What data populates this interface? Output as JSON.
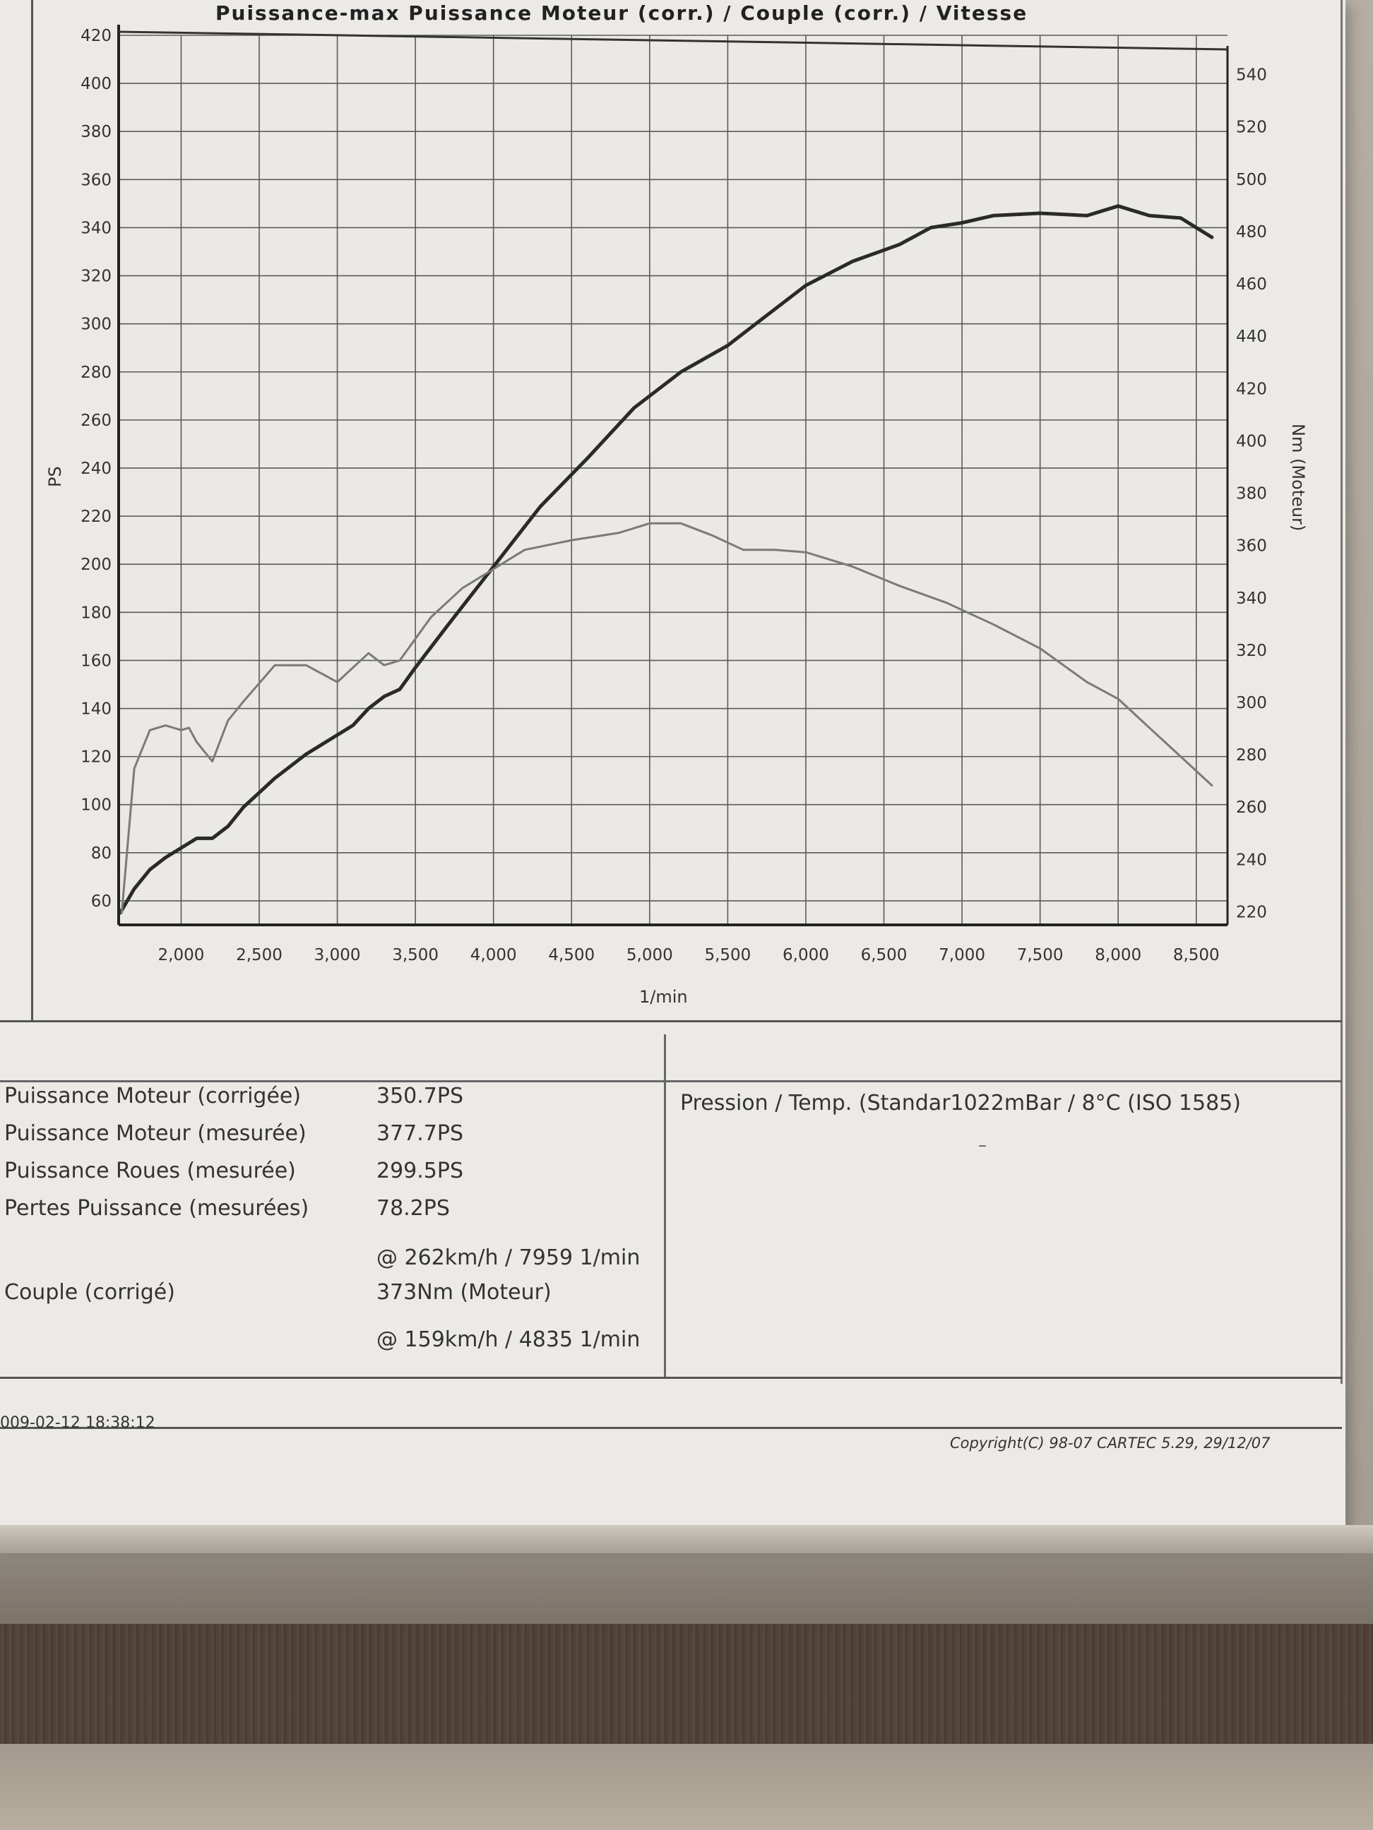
{
  "chart_data": {
    "type": "line",
    "title": "Puissance-max Puissance Moteur (corr.) / Couple (corr.) / Vitesse",
    "xlabel": "1/min",
    "ylabel_left": "PS",
    "ylabel_right": "Nm (Moteur)",
    "xlim": [
      1600,
      8700
    ],
    "ylim_left": [
      50,
      420
    ],
    "ylim_right": [
      215,
      555
    ],
    "x_ticks": [
      2000,
      2500,
      3000,
      3500,
      4000,
      4500,
      5000,
      5500,
      6000,
      6500,
      7000,
      7500,
      8000,
      8500
    ],
    "x_tick_labels": [
      "2,000",
      "2,500",
      "3,000",
      "3,500",
      "4,000",
      "4,500",
      "5,000",
      "5,500",
      "6,000",
      "6,500",
      "7,000",
      "7,500",
      "8,000",
      "8,500"
    ],
    "y_left_ticks": [
      60,
      80,
      100,
      120,
      140,
      160,
      180,
      200,
      220,
      240,
      260,
      280,
      300,
      320,
      340,
      360,
      380,
      400,
      420
    ],
    "y_right_ticks": [
      220,
      240,
      260,
      280,
      300,
      320,
      340,
      360,
      380,
      400,
      420,
      440,
      460,
      480,
      500,
      520,
      540
    ],
    "grid": true,
    "series": [
      {
        "axis": "left",
        "color": "#2a2a2a",
        "x": [
          1610,
          1700,
          1800,
          1900,
          2000,
          2100,
          2200,
          2300,
          2400,
          2600,
          2800,
          3000,
          3100,
          3200,
          3300,
          3400,
          3500,
          3700,
          4000,
          4300,
          4600,
          4900,
          5200,
          5500,
          5700,
          6000,
          6300,
          6600,
          6800,
          7000,
          7200,
          7500,
          7800,
          8000,
          8200,
          8400,
          8600
        ],
        "y": [
          55,
          65,
          73,
          78,
          82,
          86,
          86,
          91,
          99,
          111,
          121,
          129,
          133,
          140,
          145,
          148,
          157,
          174,
          199,
          224,
          244,
          265,
          280,
          291,
          301,
          316,
          326,
          333,
          340,
          342,
          345,
          346,
          345,
          349,
          345,
          344,
          336
        ]
      },
      {
        "axis": "left",
        "color": "#7a7a7a",
        "x": [
          1620,
          1700,
          1800,
          1900,
          2000,
          2050,
          2100,
          2200,
          2300,
          2400,
          2600,
          2800,
          3000,
          3100,
          3200,
          3300,
          3400,
          3600,
          3800,
          4000,
          4200,
          4500,
          4800,
          5000,
          5200,
          5400,
          5600,
          5800,
          6000,
          6300,
          6600,
          6900,
          7200,
          7500,
          7800,
          8000,
          8200,
          8400,
          8600
        ],
        "y": [
          55,
          115,
          131,
          133,
          131,
          132,
          126,
          118,
          135,
          143,
          158,
          158,
          151,
          157,
          163,
          158,
          160,
          178,
          190,
          198,
          206,
          210,
          213,
          217,
          217,
          212,
          206,
          206,
          205,
          199,
          191,
          184,
          175,
          165,
          151,
          144,
          132,
          120,
          108
        ]
      }
    ]
  },
  "results": {
    "rows": [
      {
        "label": "Puissance Moteur (corrigée)",
        "value": "350.7PS"
      },
      {
        "label": "Puissance Moteur (mesurée)",
        "value": "377.7PS"
      },
      {
        "label": "Puissance Roues (mesurée)",
        "value": "299.5PS"
      },
      {
        "label": "Pertes Puissance (mesurées)",
        "value": "78.2PS"
      },
      {
        "label": "",
        "value": "@ 262km/h / 7959 1/min"
      },
      {
        "label": "Couple (corrigé)",
        "value": "373Nm (Moteur)"
      },
      {
        "label": "",
        "value": "@ 159km/h / 4835 1/min"
      }
    ],
    "pressure_temp": "Pression / Temp. (Standar1022mBar / 8°C   (ISO 1585)",
    "dash": "–"
  },
  "footer": {
    "timestamp": "009-02-12 18:38:12",
    "copyright": "Copyright(C) 98-07 CARTEC 5.29, 29/12/07"
  }
}
